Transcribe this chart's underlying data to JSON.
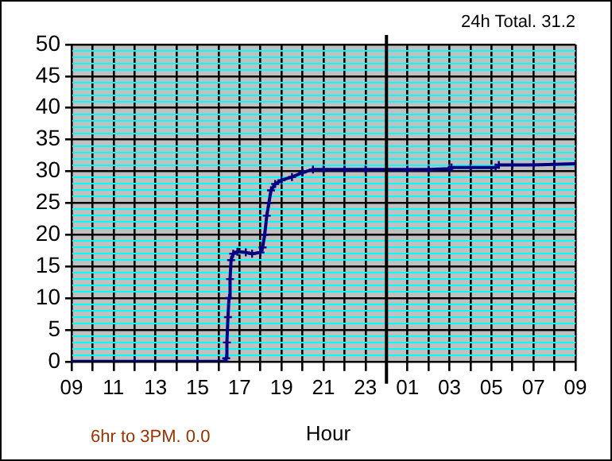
{
  "chart_data": {
    "type": "line",
    "xlabel": "Hour",
    "annotations": [
      "24h Total. 31.2",
      "6hr to 3PM. 0.0"
    ],
    "x": [
      "--01-01T09:00",
      "--01-01T12:00",
      "--01-01T15:00",
      "--01-01T16:18",
      "--01-01T16:22",
      "--01-01T16:24",
      "--01-01T16:27",
      "--01-01T16:30",
      "--01-01T16:33",
      "--01-01T16:36",
      "--01-01T16:42",
      "--01-01T16:54",
      "--01-01T17:18",
      "--01-01T17:36",
      "--01-01T18:00",
      "--01-01T18:06",
      "--01-01T18:12",
      "--01-01T18:18",
      "--01-01T18:24",
      "--01-01T18:30",
      "--01-01T18:42",
      "--01-01T19:00",
      "--01-01T19:30",
      "--01-01T20:00",
      "--01-01T20:30",
      "--01-01T21:00",
      "--01-01T22:00",
      "--01-01T23:00",
      "--01-02T00:00",
      "--01-02T01:00",
      "--01-02T02:00",
      "--01-02T03:00",
      "--01-02T03:06",
      "--01-02T04:00",
      "--01-02T05:12",
      "--01-02T05:21",
      "--01-02T06:00",
      "--01-02T07:00",
      "--01-02T08:00",
      "--01-02T09:00"
    ],
    "series": [
      {
        "color": "#000080",
        "values": [
          0,
          0,
          0,
          0,
          0.5,
          3,
          7,
          10,
          13,
          16,
          17,
          17.3,
          17.2,
          17,
          17.2,
          18,
          20,
          23,
          25,
          27,
          28,
          28.6,
          29.1,
          29.8,
          30.3,
          30.3,
          30.3,
          30.3,
          30.3,
          30.3,
          30.3,
          30.4,
          30.6,
          30.6,
          30.6,
          31.0,
          31.0,
          31.0,
          31.1,
          31.2
        ]
      }
    ],
    "xlim": [
      "--01-01T09:00",
      "--01-02T09:00"
    ],
    "xticks": [
      {
        "value": "--01-01T09:00",
        "label": "09"
      },
      {
        "value": "--01-01T10:00",
        "label": null
      },
      {
        "value": "--01-01T11:00",
        "label": "11"
      },
      {
        "value": "--01-01T12:00",
        "label": null
      },
      {
        "value": "--01-01T13:00",
        "label": "13"
      },
      {
        "value": "--01-01T14:00",
        "label": null
      },
      {
        "value": "--01-01T15:00",
        "label": "15"
      },
      {
        "value": "--01-01T16:00",
        "label": null
      },
      {
        "value": "--01-01T17:00",
        "label": "17"
      },
      {
        "value": "--01-01T18:00",
        "label": null
      },
      {
        "value": "--01-01T19:00",
        "label": "19"
      },
      {
        "value": "--01-01T20:00",
        "label": null
      },
      {
        "value": "--01-01T21:00",
        "label": "21"
      },
      {
        "value": "--01-01T22:00",
        "label": null
      },
      {
        "value": "--01-01T23:00",
        "label": "23"
      },
      {
        "value": "--01-02T00:00",
        "label": null
      },
      {
        "value": "--01-02T01:00",
        "label": "01"
      },
      {
        "value": "--01-02T02:00",
        "label": null
      },
      {
        "value": "--01-02T03:00",
        "label": "03"
      },
      {
        "value": "--01-02T04:00",
        "label": null
      },
      {
        "value": "--01-02T05:00",
        "label": "05"
      },
      {
        "value": "--01-02T06:00",
        "label": null
      },
      {
        "value": "--01-02T07:00",
        "label": "07"
      },
      {
        "value": "--01-02T08:00",
        "label": null
      },
      {
        "value": "--01-02T09:00",
        "label": "09"
      }
    ],
    "ylim": [
      0,
      50
    ],
    "yticks": [
      0,
      {
        "value": 1,
        "label": null
      },
      {
        "value": 2,
        "label": null
      },
      {
        "value": 3,
        "label": null
      },
      {
        "value": 4,
        "label": null
      },
      5,
      {
        "value": 6,
        "label": null
      },
      {
        "value": 7,
        "label": null
      },
      {
        "value": 8,
        "label": null
      },
      {
        "value": 9,
        "label": null
      },
      10,
      {
        "value": 11,
        "label": null
      },
      {
        "value": 12,
        "label": null
      },
      {
        "value": 13,
        "label": null
      },
      {
        "value": 14,
        "label": null
      },
      15,
      {
        "value": 16,
        "label": null
      },
      {
        "value": 17,
        "label": null
      },
      {
        "value": 18,
        "label": null
      },
      {
        "value": 19,
        "label": null
      },
      20,
      {
        "value": 21,
        "label": null
      },
      {
        "value": 22,
        "label": null
      },
      {
        "value": 23,
        "label": null
      },
      {
        "value": 24,
        "label": null
      },
      25,
      {
        "value": 26,
        "label": null
      },
      {
        "value": 27,
        "label": null
      },
      {
        "value": 28,
        "label": null
      },
      {
        "value": 29,
        "label": null
      },
      30,
      {
        "value": 31,
        "label": null
      },
      {
        "value": 32,
        "label": null
      },
      {
        "value": 33,
        "label": null
      },
      {
        "value": 34,
        "label": null
      },
      35,
      {
        "value": 36,
        "label": null
      },
      {
        "value": 37,
        "label": null
      },
      {
        "value": 38,
        "label": null
      },
      {
        "value": 39,
        "label": null
      },
      40,
      {
        "value": 41,
        "label": null
      },
      {
        "value": 42,
        "label": null
      },
      {
        "value": 43,
        "label": null
      },
      {
        "value": 44,
        "label": null
      },
      45,
      {
        "value": 46,
        "label": null
      },
      {
        "value": 47,
        "label": null
      },
      {
        "value": 48,
        "label": null
      },
      {
        "value": 49,
        "label": null
      },
      50
    ],
    "ref_lines": [
      {
        "axis": "x",
        "value": "--01-02T00:00",
        "color": "#000000"
      }
    ],
    "grid": true,
    "legend": false,
    "marker": "cross",
    "line_style": "solid"
  }
}
